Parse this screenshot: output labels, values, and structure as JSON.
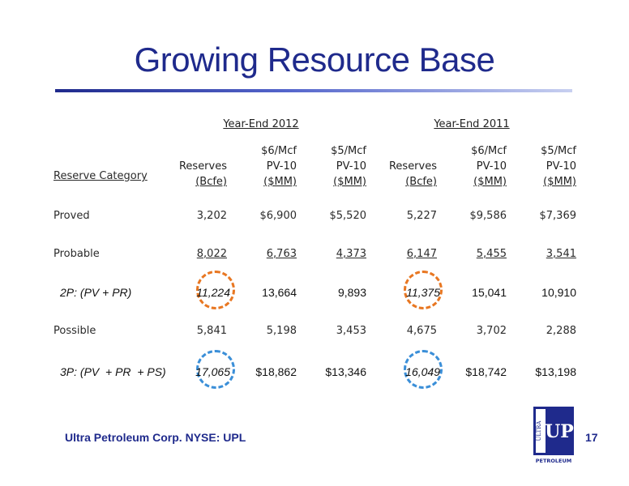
{
  "title": "Growing Resource Base",
  "groups": {
    "y2012": "Year-End 2012",
    "y2011": "Year-End 2011"
  },
  "headers": {
    "category": "Reserve Category",
    "reserves": [
      "Reserves",
      "(Bcfe)"
    ],
    "pv6": [
      "$6/Mcf",
      "PV-10",
      "($MM)"
    ],
    "pv5": [
      "$5/Mcf",
      "PV-10",
      "($MM)"
    ]
  },
  "rows": [
    {
      "label": "Proved",
      "v": [
        "3,202",
        "$6,900",
        "$5,520",
        "5,227",
        "$9,586",
        "$7,369"
      ]
    },
    {
      "label": "Probable",
      "v": [
        "8,022",
        "6,763",
        "4,373",
        "6,147",
        "5,455",
        "3,541"
      ]
    },
    {
      "label": "2P: (PV + PR)",
      "v": [
        "11,224",
        "13,664",
        "9,893",
        "11,375",
        "15,041",
        "10,910"
      ]
    },
    {
      "label": "Possible",
      "v": [
        "5,841",
        "5,198",
        "3,453",
        "4,675",
        "3,702",
        "2,288"
      ]
    },
    {
      "label": "3P: (PV  + PR  + PS)",
      "v": [
        "17,065",
        "$18,862",
        "$13,346",
        "16,049",
        "$18,742",
        "$13,198"
      ]
    }
  ],
  "footer": "Ultra Petroleum Corp. NYSE: UPL",
  "page_number": "17",
  "logo": {
    "text_side": "ULTRA",
    "text_main": "UP",
    "text_bottom": "PETROLEUM"
  },
  "colors": {
    "title": "#1f2a8c",
    "circle_2p": "#e87722",
    "circle_3p": "#3b8fd8"
  }
}
